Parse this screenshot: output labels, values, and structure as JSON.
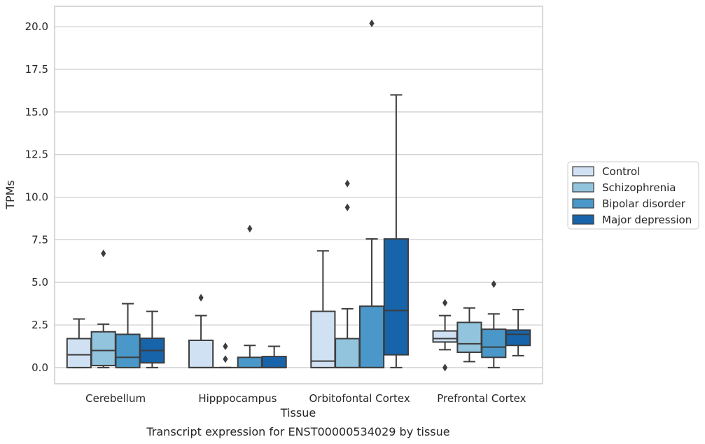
{
  "chart_data": {
    "type": "box",
    "caption": "Transcript expression for ENST00000534029 by tissue",
    "xlabel": "Tissue",
    "ylabel": "TPMs",
    "ylim": [
      -0.95,
      21.2
    ],
    "yticks": [
      "0.0",
      "2.5",
      "5.0",
      "7.5",
      "10.0",
      "12.5",
      "15.0",
      "17.5",
      "20.0"
    ],
    "grid": true,
    "legend_position": "right",
    "categories": [
      "Cerebellum",
      "Hipppocampus",
      "Orbitofontal Cortex",
      "Prefrontal Cortex"
    ],
    "series": [
      {
        "name": "Control",
        "color": "#cfe1f2",
        "boxes": [
          {
            "whisker_low": 0.0,
            "q1": 0.0,
            "median": 0.75,
            "q3": 1.7,
            "whisker_high": 2.85,
            "outliers": []
          },
          {
            "whisker_low": 0.0,
            "q1": 0.0,
            "median": 0.0,
            "q3": 1.6,
            "whisker_high": 3.05,
            "outliers": [
              4.1
            ]
          },
          {
            "whisker_low": 0.0,
            "q1": 0.0,
            "median": 0.38,
            "q3": 3.3,
            "whisker_high": 6.85,
            "outliers": []
          },
          {
            "whisker_low": 1.05,
            "q1": 1.5,
            "median": 1.7,
            "q3": 2.15,
            "whisker_high": 3.05,
            "outliers": [
              3.8,
              0.0
            ]
          }
        ]
      },
      {
        "name": "Schizophrenia",
        "color": "#93c4de",
        "boxes": [
          {
            "whisker_low": 0.0,
            "q1": 0.12,
            "median": 1.0,
            "q3": 2.1,
            "whisker_high": 2.55,
            "outliers": [
              6.7
            ]
          },
          {
            "whisker_low": 0.0,
            "q1": 0.0,
            "median": 0.0,
            "q3": 0.0,
            "whisker_high": 0.0,
            "outliers": [
              1.25,
              0.5
            ]
          },
          {
            "whisker_low": 0.0,
            "q1": 0.0,
            "median": 0.0,
            "q3": 1.7,
            "whisker_high": 3.45,
            "outliers": [
              10.8,
              9.4
            ]
          },
          {
            "whisker_low": 0.35,
            "q1": 0.9,
            "median": 1.4,
            "q3": 2.65,
            "whisker_high": 3.5,
            "outliers": []
          }
        ]
      },
      {
        "name": "Bipolar disorder",
        "color": "#4a98c9",
        "boxes": [
          {
            "whisker_low": 0.0,
            "q1": 0.0,
            "median": 0.6,
            "q3": 1.95,
            "whisker_high": 3.75,
            "outliers": []
          },
          {
            "whisker_low": 0.0,
            "q1": 0.0,
            "median": 0.0,
            "q3": 0.6,
            "whisker_high": 1.3,
            "outliers": [
              8.15
            ]
          },
          {
            "whisker_low": 0.0,
            "q1": 0.0,
            "median": 0.0,
            "q3": 3.6,
            "whisker_high": 7.55,
            "outliers": [
              20.2
            ]
          },
          {
            "whisker_low": 0.0,
            "q1": 0.6,
            "median": 1.2,
            "q3": 2.25,
            "whisker_high": 3.15,
            "outliers": [
              4.9
            ]
          }
        ]
      },
      {
        "name": "Major depression",
        "color": "#1764ab",
        "boxes": [
          {
            "whisker_low": 0.0,
            "q1": 0.28,
            "median": 1.0,
            "q3": 1.72,
            "whisker_high": 3.3,
            "outliers": []
          },
          {
            "whisker_low": 0.0,
            "q1": 0.0,
            "median": 0.0,
            "q3": 0.65,
            "whisker_high": 1.25,
            "outliers": []
          },
          {
            "whisker_low": 0.0,
            "q1": 0.75,
            "median": 3.35,
            "q3": 7.55,
            "whisker_high": 16.0,
            "outliers": []
          },
          {
            "whisker_low": 0.7,
            "q1": 1.3,
            "median": 1.95,
            "q3": 2.2,
            "whisker_high": 3.4,
            "outliers": []
          }
        ]
      }
    ]
  }
}
